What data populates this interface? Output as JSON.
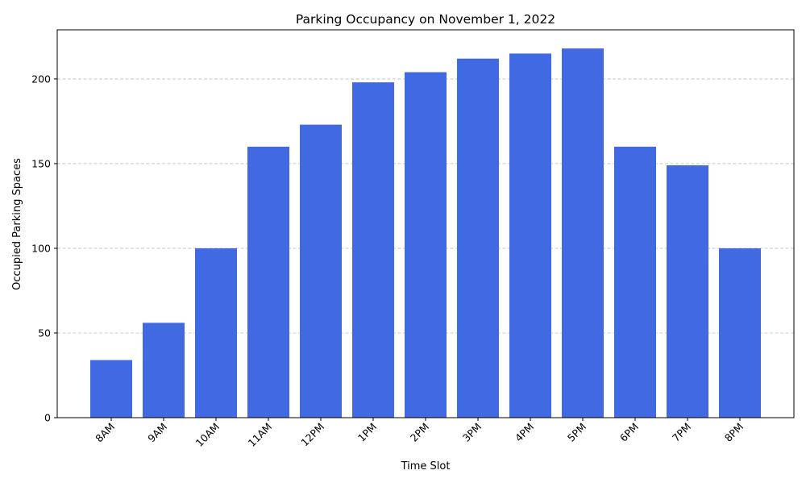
{
  "colors": {
    "bar": "#4169e1",
    "grid": "#bfbfbf",
    "axis": "#000000"
  },
  "chart_data": {
    "type": "bar",
    "title": "Parking Occupancy on November 1, 2022",
    "xlabel": "Time Slot",
    "ylabel": "Occupied Parking Spaces",
    "categories": [
      "8AM",
      "9AM",
      "10AM",
      "11AM",
      "12PM",
      "1PM",
      "2PM",
      "3PM",
      "4PM",
      "5PM",
      "6PM",
      "7PM",
      "8PM"
    ],
    "values": [
      34,
      56,
      100,
      160,
      173,
      198,
      204,
      212,
      215,
      218,
      160,
      149,
      100
    ],
    "ylim": [
      0,
      229
    ],
    "yticks": [
      0,
      50,
      100,
      150,
      200
    ],
    "grid": "y-dashed",
    "xtick_rotation": 45
  }
}
